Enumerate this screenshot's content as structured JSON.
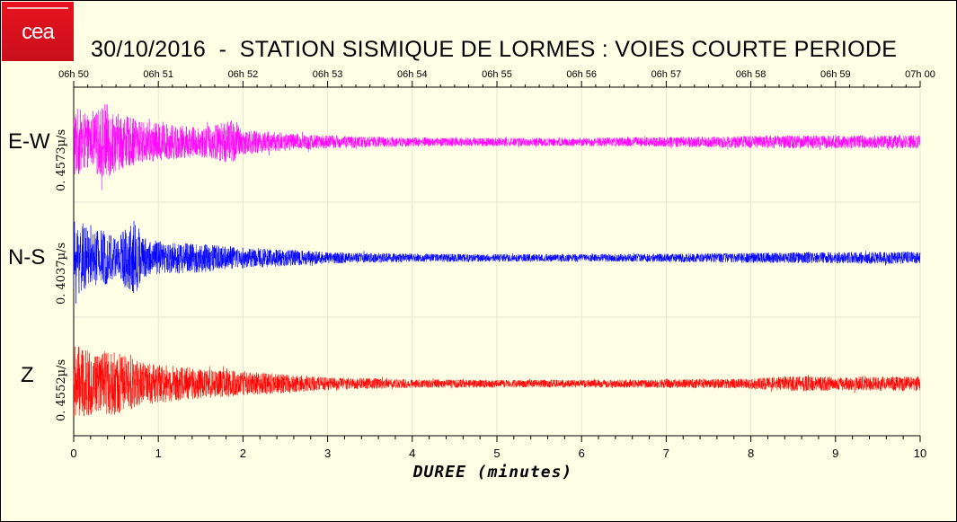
{
  "logo": {
    "text": "cea"
  },
  "title": "30/10/2016  -  STATION SISMIQUE DE LORMES : VOIES COURTE PERIODE",
  "chart_data": {
    "type": "line",
    "title": "30/10/2016  -  STATION SISMIQUE DE LORMES : VOIES COURTE PERIODE",
    "xlabel": "DUREE (minutes)",
    "xlim": [
      0,
      10
    ],
    "x_ticks": [
      "0",
      "1",
      "2",
      "3",
      "4",
      "5",
      "6",
      "7",
      "8",
      "9",
      "10"
    ],
    "top_time_ticks": [
      "06h 50",
      "06h 51",
      "06h 52",
      "06h 53",
      "06h 54",
      "06h 55",
      "06h 56",
      "06h 57",
      "06h 58",
      "06h 59",
      "07h 00"
    ],
    "grid": true,
    "series": [
      {
        "name": "E-W",
        "amplitude_label": "0. 4573µ/s",
        "color": "#ff00ff",
        "envelope": {
          "x": [
            0,
            0.1,
            0.2,
            0.3,
            0.35,
            0.5,
            0.8,
            1.0,
            1.5,
            1.9,
            2.0,
            2.5,
            3,
            4,
            5,
            6,
            7,
            8,
            9,
            10
          ],
          "amp": [
            0.9,
            0.75,
            0.55,
            0.8,
            1.0,
            0.7,
            0.5,
            0.45,
            0.35,
            0.55,
            0.3,
            0.22,
            0.16,
            0.11,
            0.1,
            0.1,
            0.12,
            0.15,
            0.16,
            0.16
          ]
        }
      },
      {
        "name": "N-S",
        "amplitude_label": "0. 4037µ/s",
        "color": "#0000ff",
        "envelope": {
          "x": [
            0,
            0.1,
            0.2,
            0.3,
            0.5,
            0.75,
            0.8,
            1.0,
            1.5,
            2.0,
            2.5,
            3,
            4,
            5,
            6,
            7,
            8,
            9,
            10
          ],
          "amp": [
            0.9,
            0.85,
            0.6,
            0.7,
            0.55,
            0.95,
            0.5,
            0.4,
            0.35,
            0.25,
            0.2,
            0.14,
            0.1,
            0.09,
            0.09,
            0.1,
            0.12,
            0.14,
            0.15
          ]
        }
      },
      {
        "name": "Z",
        "amplitude_label": "0. 4552µ/s",
        "color": "#ff0000",
        "envelope": {
          "x": [
            0,
            0.1,
            0.3,
            0.5,
            0.8,
            1.0,
            1.5,
            2.0,
            2.5,
            3,
            4,
            5,
            6,
            7,
            8,
            8.5,
            9,
            10
          ],
          "amp": [
            0.95,
            0.8,
            0.7,
            0.75,
            0.5,
            0.45,
            0.35,
            0.28,
            0.22,
            0.15,
            0.1,
            0.09,
            0.09,
            0.1,
            0.12,
            0.18,
            0.16,
            0.17
          ]
        }
      }
    ]
  }
}
